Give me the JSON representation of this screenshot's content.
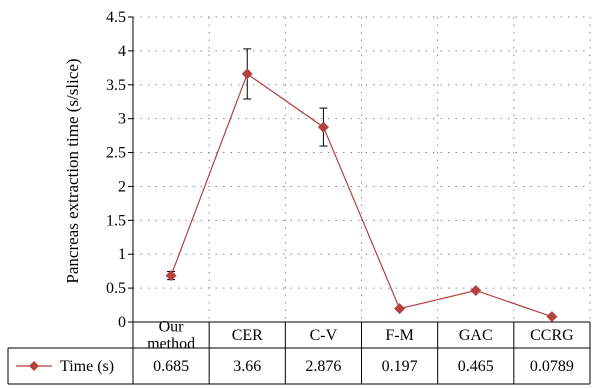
{
  "chart_data": {
    "type": "line",
    "categories": [
      [
        "Our",
        "method"
      ],
      [
        "CER"
      ],
      [
        "C-V"
      ],
      [
        "F-M"
      ],
      [
        "GAC"
      ],
      [
        "CCRG"
      ]
    ],
    "series": [
      {
        "name": "Time (s)",
        "values": [
          0.685,
          3.66,
          2.876,
          0.197,
          0.465,
          0.0789
        ],
        "value_labels": [
          "0.685",
          "3.66",
          "2.876",
          "0.197",
          "0.465",
          "0.0789"
        ],
        "error_bars": [
          0.06,
          0.37,
          0.28,
          0,
          0,
          0
        ]
      }
    ],
    "title": "",
    "xlabel": "",
    "ylabel": "Pancreas extraction time (s/slice)",
    "ylim": [
      0,
      4.5
    ],
    "yticks": [
      0,
      0.5,
      1,
      1.5,
      2,
      2.5,
      3,
      3.5,
      4,
      4.5
    ],
    "ytick_labels": [
      "0",
      "0.5",
      "1",
      "1.5",
      "2",
      "2.5",
      "3",
      "3.5",
      "4",
      "4.5"
    ],
    "grid": "dotted horizontal and vertical",
    "legend": "data table below x-axis",
    "colors": {
      "series": "#b5413f",
      "axis": "#000000",
      "grid": "#8a8a8a"
    }
  }
}
